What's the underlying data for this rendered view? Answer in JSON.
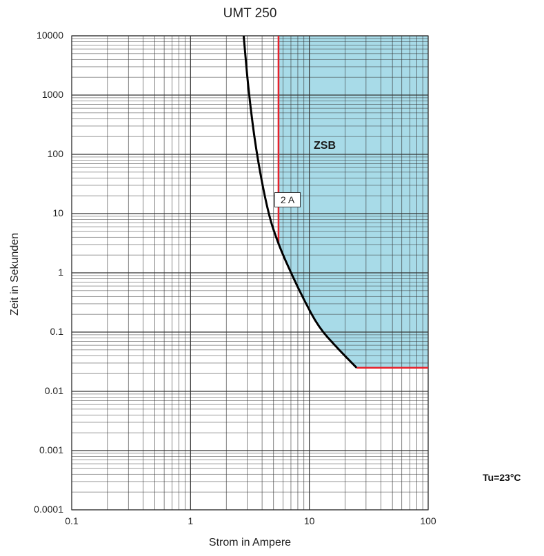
{
  "chart_data": {
    "type": "line",
    "title": "UMT 250",
    "xlabel": "Strom in Ampere",
    "ylabel": "Zeit in Sekunden",
    "xscale": "log",
    "yscale": "log",
    "xlim": [
      0.1,
      100
    ],
    "ylim": [
      0.0001,
      10000
    ],
    "grid": true,
    "x_ticks": [
      "0.1",
      "1",
      "10",
      "100"
    ],
    "y_ticks": [
      "0.0001",
      "0.001",
      "0.01",
      "0.1",
      "1",
      "10",
      "100",
      "1000",
      "10000"
    ],
    "series": [
      {
        "color": "#000000",
        "points": [
          [
            2.8,
            10000
          ],
          [
            3.1,
            1000
          ],
          [
            3.6,
            100
          ],
          [
            4.5,
            10
          ],
          [
            5.5,
            3
          ],
          [
            7,
            1
          ],
          [
            9,
            0.35
          ],
          [
            12,
            0.12
          ],
          [
            17,
            0.055
          ],
          [
            25,
            0.025
          ]
        ]
      }
    ],
    "zones": [
      {
        "name": "ZSB",
        "fill": "#a8dbe8",
        "boundary_color": "#e8202a",
        "x_min": 5.5,
        "t_min": 0.025
      }
    ],
    "annotations": [
      {
        "text": "2 A",
        "x": 5.5,
        "y": 17
      }
    ]
  },
  "note": "Tu=23°C",
  "colors": {
    "curve": "#000000",
    "zone_fill": "#a8dbe8",
    "boundary": "#e8202a",
    "grid": "#333333"
  }
}
